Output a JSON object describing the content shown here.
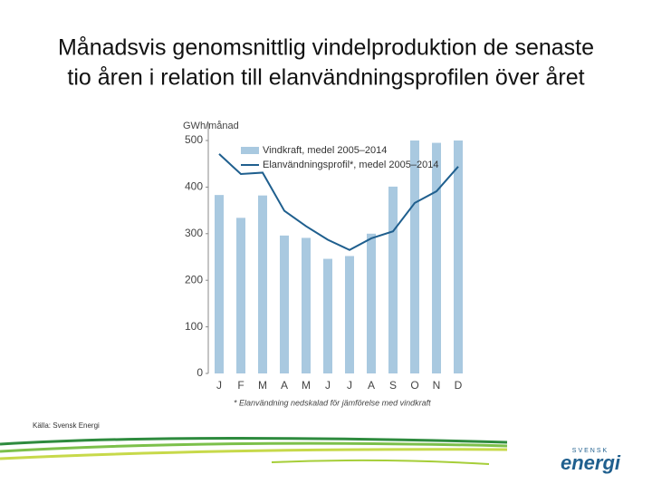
{
  "chart_data": {
    "type": "bar_line",
    "title": [
      "Månadsvis genomsnittlig vindelproduktion de senaste",
      "tio åren i relation till elanvändningsprofilen över året"
    ],
    "y_label": "GWh/månad",
    "categories": [
      "J",
      "F",
      "M",
      "A",
      "M",
      "J",
      "J",
      "A",
      "S",
      "O",
      "N",
      "D"
    ],
    "series": [
      {
        "name": "Vindkraft, medel 2005–2014",
        "type": "bar",
        "color": "#a9c9e0",
        "values": [
          383,
          334,
          382,
          296,
          291,
          246,
          252,
          300,
          401,
          500,
          495,
          500
        ]
      },
      {
        "name": "Elanvändningsprofil*, medel 2005–2014",
        "type": "line",
        "color": "#1f5f8e",
        "values": [
          471,
          428,
          431,
          349,
          316,
          287,
          265,
          290,
          305,
          366,
          391,
          444
        ]
      }
    ],
    "ylim": [
      0,
      500
    ],
    "yticks": [
      0,
      100,
      200,
      300,
      400,
      500
    ],
    "grid": false,
    "footnote": "* Elanvändning nedskalad för jämförelse med vindkraft",
    "source": "Källa: Svensk Energi",
    "logo": {
      "top": "SVENSK",
      "main": "energi"
    }
  }
}
